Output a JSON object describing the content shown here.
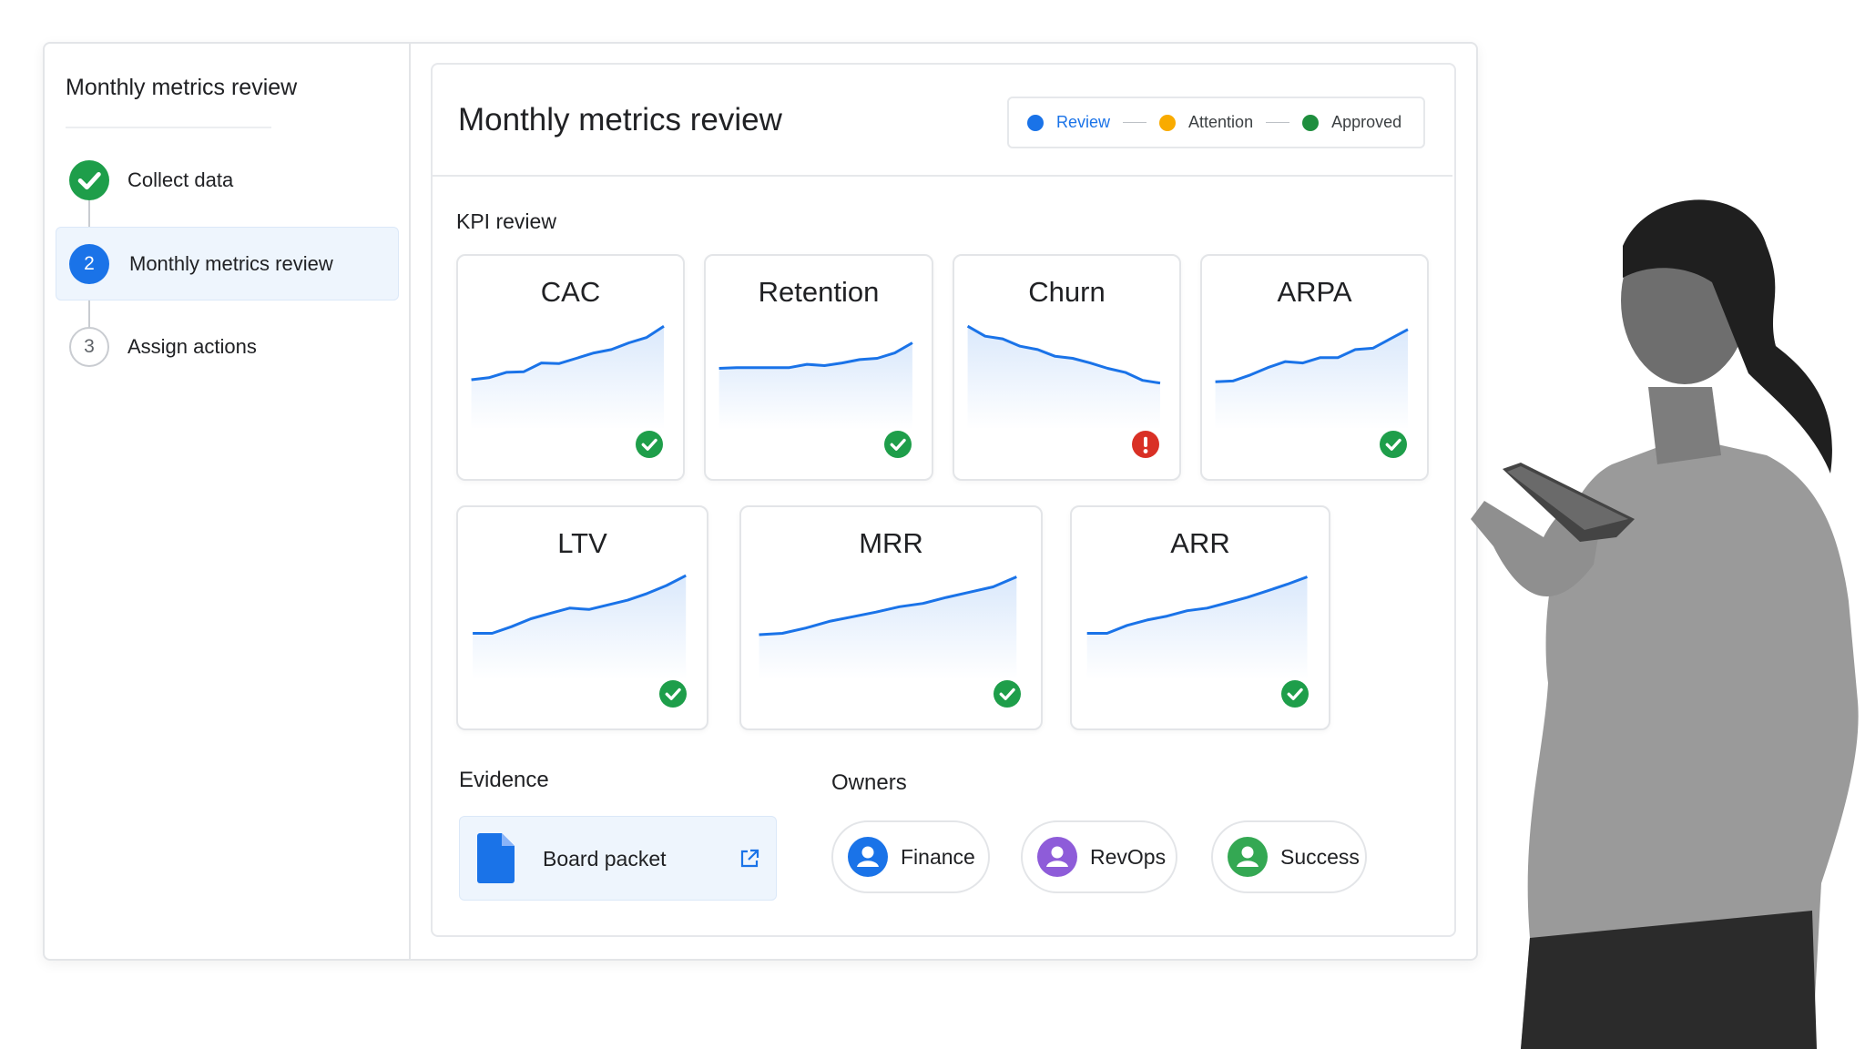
{
  "sidebar": {
    "title": "Monthly metrics review",
    "steps": [
      {
        "label": "Collect data",
        "status": "done"
      },
      {
        "number": 2,
        "label": "Monthly metrics review",
        "status": "current"
      },
      {
        "number": 3,
        "label": "Assign actions",
        "status": "todo"
      }
    ]
  },
  "main": {
    "title": "Monthly metrics review",
    "legend": [
      {
        "label": "Review",
        "color": "#1a73e8"
      },
      {
        "label": "Attention",
        "color": "#f9ab00"
      },
      {
        "label": "Approved",
        "color": "#1e8e3e"
      }
    ],
    "kpi_section": "KPI review",
    "kpis": [
      {
        "name": "CAC",
        "status": "ok"
      },
      {
        "name": "Retention",
        "status": "ok"
      },
      {
        "name": "Churn",
        "status": "alert"
      },
      {
        "name": "ARPA",
        "status": "ok"
      },
      {
        "name": "LTV",
        "status": "ok"
      },
      {
        "name": "MRR",
        "status": "ok"
      },
      {
        "name": "ARR",
        "status": "ok"
      }
    ],
    "evidence": {
      "title": "Evidence",
      "item": "Board packet"
    },
    "owners": {
      "title": "Owners",
      "items": [
        {
          "label": "Finance",
          "color": "#1a73e8"
        },
        {
          "label": "RevOps",
          "color": "#8e5cd9"
        },
        {
          "label": "Success",
          "color": "#34a853"
        }
      ]
    }
  }
}
